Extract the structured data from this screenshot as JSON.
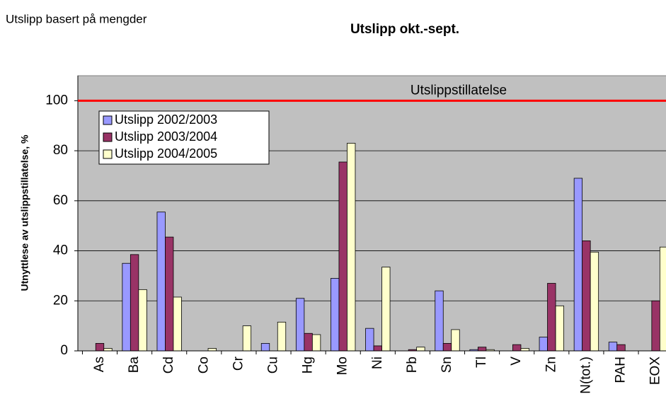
{
  "header": {
    "note": "Utslipp basert på mengder"
  },
  "chart_data": {
    "type": "bar",
    "title": "Utslipp okt.-sept.",
    "y_label": "Utnyttlese av utslippstillatelse, %",
    "categories": [
      "As",
      "Ba",
      "Cd",
      "Co",
      "Cr",
      "Cu",
      "Hg",
      "Mo",
      "Ni",
      "Pb",
      "Sn",
      "Tl",
      "V",
      "Zn",
      "N(tot.)",
      "PAH",
      "EOX"
    ],
    "series": [
      {
        "name": "Utslipp 2002/2003",
        "color": "#9999ff",
        "values": [
          0,
          35,
          55.5,
          0,
          0,
          3,
          21,
          29,
          9,
          0,
          24,
          0.5,
          0,
          5.5,
          69,
          3.5,
          0
        ]
      },
      {
        "name": "Utslipp 2003/2004",
        "color": "#993366",
        "values": [
          3,
          38.5,
          45.5,
          0,
          0,
          0,
          7,
          75.5,
          2,
          0.5,
          3,
          1.5,
          2.5,
          27,
          44,
          2.5,
          20
        ]
      },
      {
        "name": "Utslipp 2004/2005",
        "color": "#ffffcc",
        "values": [
          1,
          24.5,
          21.5,
          1,
          10,
          11.5,
          6.5,
          83,
          33.5,
          1.5,
          8.5,
          0.5,
          1,
          18,
          39.5,
          0,
          41.5
        ]
      }
    ],
    "reference": {
      "value": 100,
      "label": "Utslippstillatelse",
      "color": "#ff0000"
    },
    "ylim": [
      0,
      110
    ],
    "yticks": [
      0,
      20,
      40,
      60,
      80,
      100
    ],
    "grid": true,
    "legend": "top-left"
  }
}
